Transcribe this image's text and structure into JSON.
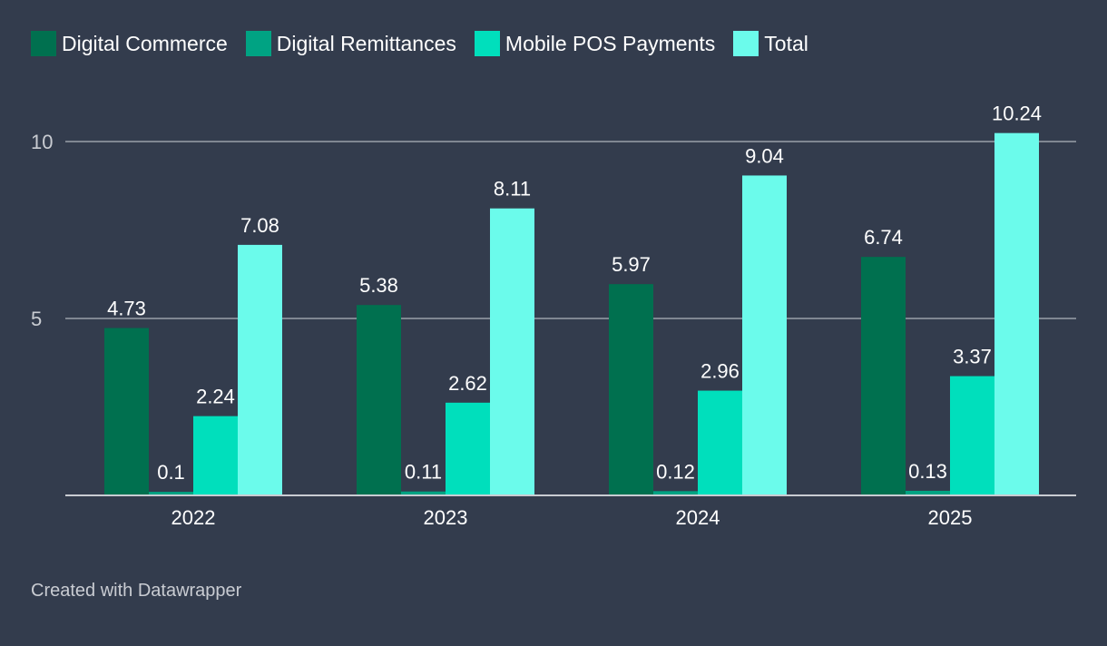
{
  "chart_data": {
    "type": "bar",
    "categories": [
      "2022",
      "2023",
      "2024",
      "2025"
    ],
    "series": [
      {
        "name": "Digital Commerce",
        "color": "#00704f",
        "values": [
          4.73,
          5.38,
          5.97,
          6.74
        ],
        "labels": [
          "4.73",
          "5.38",
          "5.97",
          "6.74"
        ]
      },
      {
        "name": "Digital Remittances",
        "color": "#00a383",
        "values": [
          0.1,
          0.11,
          0.12,
          0.13
        ],
        "labels": [
          "0.1",
          "0.11",
          "0.12",
          "0.13"
        ]
      },
      {
        "name": "Mobile POS Payments",
        "color": "#00dfbc",
        "values": [
          2.24,
          2.62,
          2.96,
          3.37
        ],
        "labels": [
          "2.24",
          "2.62",
          "2.96",
          "3.37"
        ]
      },
      {
        "name": "Total",
        "color": "#6bfbeb",
        "values": [
          7.08,
          8.11,
          9.04,
          10.24
        ],
        "labels": [
          "7.08",
          "8.11",
          "9.04",
          "10.24"
        ]
      }
    ],
    "yticks": [
      5,
      10
    ],
    "ytick_labels": [
      "5",
      "10"
    ],
    "ylim": [
      0,
      10
    ],
    "grid": true,
    "legend_position": "top-left",
    "title": "",
    "xlabel": "",
    "ylabel": ""
  },
  "footer": {
    "credit": "Created with Datawrapper"
  }
}
